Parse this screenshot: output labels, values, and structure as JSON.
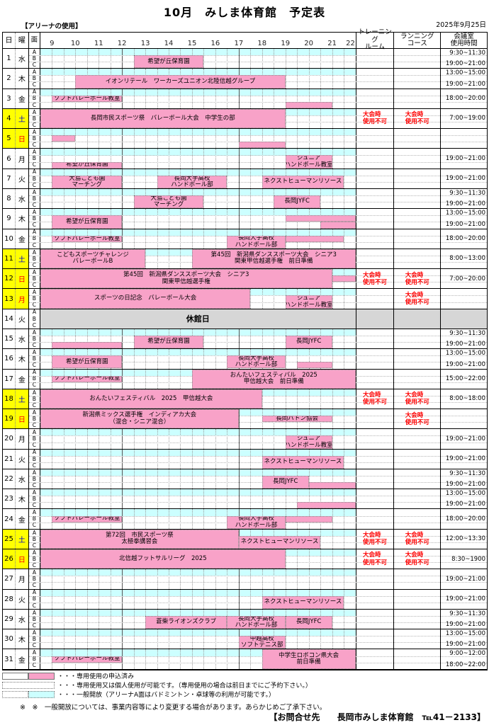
{
  "title": "10月　みしま体育館　予定表",
  "arena_note": "【アリーナの使用】",
  "date_label": "2025年9月25日",
  "header": {
    "day": "日",
    "weekday": "曜",
    "court": "面",
    "hours": [
      9,
      10,
      11,
      12,
      13,
      14,
      15,
      16,
      17,
      18,
      19,
      20,
      21,
      22
    ],
    "training_room": [
      "トレーニング",
      "ルーム"
    ],
    "running_course": [
      "ランニング",
      "コース"
    ],
    "meeting_room": [
      "会議室",
      "使用時間"
    ]
  },
  "grid": {
    "t_start": 8.5,
    "t_end": 22,
    "solid_hours": [
      12,
      17
    ]
  },
  "colors": {
    "pink": "#F8A2C8",
    "cyan": "#CCFFFF",
    "yellow": "#FFFF00",
    "gray": "#D6D6D6",
    "red": "#FF0000",
    "blue": "#0000CC"
  },
  "unavailable_lines": [
    "大会時",
    "使用不可"
  ],
  "closed_label": "休館日",
  "days": [
    {
      "n": 1,
      "wd": "水",
      "wc": "k",
      "mr": [
        "9:30~11:30",
        "19:00~21:00"
      ],
      "blocks": [
        {
          "r": "BC",
          "t0": 12.5,
          "t1": 15.5,
          "lines": [
            "希望が丘保育園"
          ]
        }
      ]
    },
    {
      "n": 2,
      "wd": "木",
      "wc": "k",
      "mr": [
        "13:00~15:00",
        "19:00~21:00"
      ],
      "blocks": [
        {
          "r": "BC",
          "t0": 10,
          "t1": 19,
          "lines": [
            "イオンリテール　ワーカーズユニオン北陸信越グループ"
          ]
        }
      ]
    },
    {
      "n": 3,
      "wd": "金",
      "wc": "k",
      "mr": [
        "18:00~20:00"
      ],
      "blocks": [
        {
          "r": "B",
          "t0": 9,
          "t1": 12,
          "lines": [
            "ソフトバレーボール教室"
          ]
        },
        {
          "r": "C",
          "t0": 19,
          "t1": 21,
          "lines": []
        }
      ]
    },
    {
      "n": 4,
      "wd": "土",
      "wc": "b",
      "yb": true,
      "tr": true,
      "rc": true,
      "mr": [
        "7:00~19:00"
      ],
      "cyan": [
        [
          19,
          22
        ]
      ],
      "blocks": [
        {
          "r": "ABC",
          "t0": 8.5,
          "t1": 19,
          "lines": [
            "長岡市民スポーツ祭　バレーボール大会　中学生の部"
          ]
        }
      ]
    },
    {
      "n": 5,
      "wd": "日",
      "wc": "r",
      "yb": true,
      "mr": [],
      "blocks": [
        {
          "r": "B",
          "t0": 9,
          "t1": 10,
          "lines": []
        },
        {
          "r": "C",
          "t0": 17,
          "t1": 19,
          "lines": []
        }
      ]
    },
    {
      "n": 6,
      "wd": "月",
      "wc": "k",
      "mr": [
        "19:00~21:00"
      ],
      "blocks": [
        {
          "r": "C",
          "t0": 9,
          "t1": 12,
          "lines": [
            "希望が丘保育園"
          ]
        },
        {
          "r": "BC",
          "t0": 19,
          "t1": 21,
          "lines": [
            "ジュニア",
            "ハンドボール教室"
          ]
        }
      ]
    },
    {
      "n": 7,
      "wd": "火",
      "wc": "k",
      "mr": [
        "19:00~21:00"
      ],
      "blocks": [
        {
          "r": "BC",
          "t0": 9,
          "t1": 12,
          "lines": [
            "大島こども園",
            "マーチング"
          ]
        },
        {
          "r": "BC",
          "t0": 13.5,
          "t1": 16.5,
          "lines": [
            "長岡大手高校",
            "ハンドボール部"
          ]
        },
        {
          "r": "BC",
          "t0": 18,
          "t1": 21.5,
          "lines": [
            "ネクストヒューマンリソース"
          ]
        }
      ]
    },
    {
      "n": 8,
      "wd": "水",
      "wc": "k",
      "mr": [
        "9:30~11:30",
        "19:00~21:00"
      ],
      "blocks": [
        {
          "r": "BC",
          "t0": 12.5,
          "t1": 15.5,
          "lines": [
            "大島こども園",
            "マーチング"
          ]
        },
        {
          "r": "BC",
          "t0": 18.5,
          "t1": 20.5,
          "lines": [
            "長岡JYFC"
          ]
        }
      ]
    },
    {
      "n": 9,
      "wd": "木",
      "wc": "k",
      "mr": [
        "13:00~15:00",
        "19:00~21:00"
      ],
      "blocks": [
        {
          "r": "BC",
          "t0": 9,
          "t1": 12,
          "lines": [
            "希望が丘保育園"
          ]
        },
        {
          "r": "B",
          "t0": 19,
          "t1": 22,
          "lines": []
        },
        {
          "r": "C",
          "t0": 20.5,
          "t1": 22,
          "lines": []
        }
      ]
    },
    {
      "n": 10,
      "wd": "金",
      "wc": "k",
      "mr": [
        "18:00~20:00"
      ],
      "blocks": [
        {
          "r": "B",
          "t0": 9,
          "t1": 12,
          "lines": [
            "ソフトバレーボール教室"
          ]
        },
        {
          "r": "BC",
          "t0": 16.5,
          "t1": 19,
          "lines": [
            "長岡大手高校",
            "ハンドボール部"
          ]
        },
        {
          "r": "B",
          "t0": 19,
          "t1": 21.5,
          "lines": []
        }
      ]
    },
    {
      "n": 11,
      "wd": "土",
      "wc": "b",
      "yb": true,
      "mr": [
        "8:00~13:00"
      ],
      "cyan": [
        [
          13,
          15
        ]
      ],
      "blocks": [
        {
          "r": "ABC",
          "t0": 8.5,
          "t1": 13,
          "lines": [
            "こどもスポーツチャレンジ",
            "バレーボールB"
          ]
        },
        {
          "r": "ABC",
          "t0": 15,
          "t1": 22,
          "lines": [
            "第45回　新潟県ダンススポーツ大会　シニア3",
            "関東甲信越選手権　前日準備"
          ]
        }
      ]
    },
    {
      "n": 12,
      "wd": "日",
      "wc": "r",
      "yb": true,
      "tr": true,
      "rc": true,
      "mr": [
        "7:00~20:00"
      ],
      "cyan": [
        [
          21,
          22
        ]
      ],
      "blocks": [
        {
          "r": "ABC",
          "t0": 8.5,
          "t1": 21,
          "lines": [
            "第45回　新潟県ダンススポーツ大会　シニア3",
            "関東甲信越選手権"
          ]
        },
        {
          "r": "B",
          "t0": 21,
          "t1": 22,
          "lines": []
        }
      ]
    },
    {
      "n": 13,
      "wd": "月",
      "wc": "r",
      "yb": true,
      "rc": true,
      "mr": [],
      "cyan": [
        [
          17.5,
          22
        ]
      ],
      "blocks": [
        {
          "r": "ABC",
          "t0": 8.5,
          "t1": 17.5,
          "lines": [
            "スポーツの日記念　バレーボール大会"
          ]
        },
        {
          "r": "BC",
          "t0": 19,
          "t1": 21,
          "lines": [
            "ジュニア",
            "ハンドボール教室"
          ]
        }
      ]
    },
    {
      "n": 14,
      "wd": "火",
      "wc": "k",
      "closed": true,
      "mr": []
    },
    {
      "n": 15,
      "wd": "水",
      "wc": "k",
      "mr": [
        "9:30~11:30",
        "19:00~21:00"
      ],
      "blocks": [
        {
          "r": "C",
          "t0": 9,
          "t1": 12,
          "lines": []
        },
        {
          "r": "BC",
          "t0": 12.5,
          "t1": 15.5,
          "lines": [
            "希望が丘保育園"
          ]
        },
        {
          "r": "BC",
          "t0": 19,
          "t1": 21,
          "lines": [
            "長岡JYFC"
          ]
        }
      ]
    },
    {
      "n": 16,
      "wd": "木",
      "wc": "k",
      "mr": [
        "13:00~15:00",
        "19:00~21:00"
      ],
      "blocks": [
        {
          "r": "BC",
          "t0": 9,
          "t1": 12,
          "lines": [
            "希望が丘保育園"
          ]
        },
        {
          "r": "BC",
          "t0": 16.5,
          "t1": 19,
          "lines": [
            "長岡大手高校",
            "ハンドボール部"
          ]
        },
        {
          "r": "C",
          "t0": 19.5,
          "t1": 21,
          "lines": []
        }
      ]
    },
    {
      "n": 17,
      "wd": "金",
      "wc": "k",
      "mr": [
        "15:00~22:00"
      ],
      "cyan": [
        [
          8.5,
          15
        ]
      ],
      "blocks": [
        {
          "r": "B",
          "t0": 9,
          "t1": 12,
          "lines": [
            "ソフトバレーボール教室"
          ]
        },
        {
          "r": "ABC",
          "t0": 15,
          "t1": 22,
          "lines": [
            "おんたいフェスティバル　2025",
            "甲信越大会　前日準備"
          ]
        }
      ]
    },
    {
      "n": 18,
      "wd": "土",
      "wc": "b",
      "yb": true,
      "tr": true,
      "rc": true,
      "mr": [
        "8:00~18:00"
      ],
      "cyan": [
        [
          18,
          22
        ]
      ],
      "blocks": [
        {
          "r": "ABC",
          "t0": 8.5,
          "t1": 18,
          "lines": [
            "おんたいフェスティバル　2025　甲信越大会"
          ]
        }
      ]
    },
    {
      "n": 19,
      "wd": "日",
      "wc": "r",
      "yb": true,
      "rc": true,
      "mr": [],
      "cyan": [
        [
          17,
          22
        ]
      ],
      "blocks": [
        {
          "r": "ABC",
          "t0": 8.5,
          "t1": 17,
          "lines": [
            "新潟県ミックス選手権　インディアカ大会",
            "（混合・シニア混合）"
          ]
        },
        {
          "r": "B",
          "t0": 18,
          "t1": 21,
          "lines": [
            "長岡バトン協会"
          ]
        }
      ]
    },
    {
      "n": 20,
      "wd": "月",
      "wc": "k",
      "mr": [
        "19:00~21:00"
      ],
      "blocks": [
        {
          "r": "BC",
          "t0": 19,
          "t1": 21,
          "lines": [
            "ジュニア",
            "ハンドボール教室"
          ]
        }
      ]
    },
    {
      "n": 21,
      "wd": "火",
      "wc": "k",
      "mr": [
        "19:00~21:00"
      ],
      "blocks": [
        {
          "r": "BC",
          "t0": 18,
          "t1": 21.5,
          "lines": [
            "ネクストヒューマンリソース"
          ]
        }
      ]
    },
    {
      "n": 22,
      "wd": "水",
      "wc": "k",
      "mr": [
        "9:30~11:30",
        "19:00~21:00"
      ],
      "blocks": [
        {
          "r": "BC",
          "t0": 18,
          "t1": 20,
          "lines": [
            "長岡JYFC"
          ]
        },
        {
          "r": "C",
          "t0": 20,
          "t1": 22,
          "lines": []
        }
      ]
    },
    {
      "n": 23,
      "wd": "木",
      "wc": "k",
      "mr": [
        "13:00~15:00",
        "19:00~21:00"
      ],
      "blocks": [
        {
          "r": "C",
          "t0": 19.5,
          "t1": 22,
          "lines": []
        }
      ]
    },
    {
      "n": 24,
      "wd": "金",
      "wc": "k",
      "mr": [
        "18:00~20:00"
      ],
      "blocks": [
        {
          "r": "B",
          "t0": 9,
          "t1": 12,
          "lines": [
            "ソフトバレーボール教室"
          ]
        },
        {
          "r": "BC",
          "t0": 16.5,
          "t1": 19,
          "lines": [
            "長岡大手高校",
            "ハンドボール部"
          ]
        },
        {
          "r": "B",
          "t0": 19,
          "t1": 21,
          "lines": []
        }
      ]
    },
    {
      "n": 25,
      "wd": "土",
      "wc": "b",
      "yb": true,
      "tr": true,
      "rc": true,
      "mr": [
        "12:00~13:30"
      ],
      "cyan": [
        [
          17,
          22
        ]
      ],
      "blocks": [
        {
          "r": "ABC",
          "t0": 8.5,
          "t1": 17,
          "lines": [
            "第72回　市民スポーツ祭",
            "太極拳講習会"
          ]
        },
        {
          "r": "BC",
          "t0": 17,
          "t1": 20.5,
          "lines": [
            "ネクストヒューマンリソース"
          ]
        }
      ]
    },
    {
      "n": 26,
      "wd": "日",
      "wc": "r",
      "yb": true,
      "tr": true,
      "rc": true,
      "mr": [
        "8:30~1900"
      ],
      "cyan": [
        [
          19,
          22
        ]
      ],
      "blocks": [
        {
          "r": "ABC",
          "t0": 8.5,
          "t1": 19,
          "lines": [
            "北信越フットサルリーグ　2025"
          ]
        }
      ]
    },
    {
      "n": 27,
      "wd": "月",
      "wc": "k",
      "mr": [
        "19:00~21:00"
      ],
      "blocks": []
    },
    {
      "n": 28,
      "wd": "火",
      "wc": "k",
      "mr": [
        "19:00~21:00"
      ],
      "blocks": [
        {
          "r": "BC",
          "t0": 18,
          "t1": 21.5,
          "lines": [
            "ネクストヒューマンリソース"
          ]
        }
      ]
    },
    {
      "n": 29,
      "wd": "水",
      "wc": "k",
      "mr": [
        "9:30~11:30",
        "19:00~21:00"
      ],
      "blocks": [
        {
          "r": "BC",
          "t0": 13,
          "t1": 16.5,
          "lines": [
            "蒼柴ライオンズクラブ"
          ]
        },
        {
          "r": "BC",
          "t0": 16.5,
          "t1": 19,
          "lines": [
            "長岡大手高校",
            "ハンドボール部"
          ]
        },
        {
          "r": "BC",
          "t0": 19,
          "t1": 21,
          "lines": [
            "長岡JYFC"
          ]
        }
      ]
    },
    {
      "n": 30,
      "wd": "木",
      "wc": "k",
      "mr": [
        "13:00~15:00",
        "19:00~21:00"
      ],
      "blocks": [
        {
          "r": "BC",
          "t0": 17,
          "t1": 19,
          "lines": [
            "中越高校",
            "ソフトテニス部"
          ]
        }
      ]
    },
    {
      "n": 31,
      "wd": "金",
      "wc": "k",
      "mr": [
        "9:00~12:00",
        "18:00~22:00"
      ],
      "cyan": [
        [
          8.5,
          18
        ]
      ],
      "blocks": [
        {
          "r": "B",
          "t0": 9,
          "t1": 12,
          "lines": [
            "ソフトバレーボール教室"
          ]
        },
        {
          "r": "ABC",
          "t0": 18,
          "t1": 22,
          "lines": [
            "中学生ロボコン県大会",
            "前日準備"
          ]
        }
      ]
    }
  ],
  "legend": {
    "l1": "・・・専用使用の申込済み",
    "l2": "・・・専用使用又は個人使用が可能です。（専用使用の場合は前日までにご予約下さい。）",
    "l3": "・・・一般開放（アリーナA面はバドミントン・卓球等の利用が可能です。）",
    "note": "※　※　一般開放については、事業内容等により変更する場合があります。あらかじめご了承下さい。",
    "footer": "【お問合せ先　　長岡市みしま体育館　℡41－2133】"
  }
}
